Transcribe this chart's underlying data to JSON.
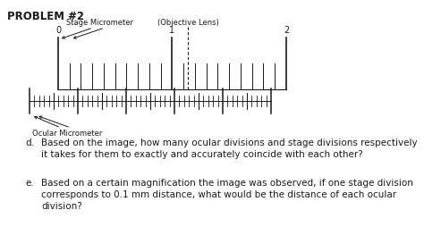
{
  "title": "PROBLEM #2",
  "objective_lens_label": "(Objective Lens)",
  "stage_micro_label": "Stage Micrometer",
  "ocular_micro_label": "Ocular Micrometer",
  "stage_tick_labels": [
    "0",
    "1",
    "2"
  ],
  "question_d_prefix": "d.",
  "question_d_line1": "Based on the image, how many ocular divisions and stage divisions respectively",
  "question_d_line2": "it takes for them to exactly and accurately coincide with each other?",
  "question_e_prefix": "e.",
  "question_e_line1": "Based on a certain magnification the image was observed, if one stage division",
  "question_e_line2": "corresponds to 0.1 mm distance, what would be the distance of each ocular",
  "question_e_line3": "division?",
  "bg_color": "#ffffff",
  "line_color": "#1a1a1a",
  "text_color": "#1a1a1a",
  "stage_n_major_intervals": 2,
  "stage_n_minor_per_major": 10,
  "ocular_n_divisions": 50
}
